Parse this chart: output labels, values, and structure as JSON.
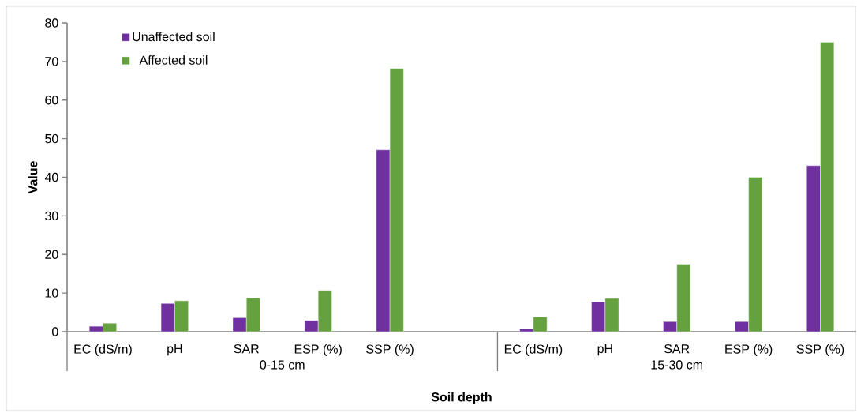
{
  "chart_data": {
    "type": "bar",
    "xlabel": "Soil depth",
    "ylabel": "Value",
    "categories": [
      "EC (dS/m)",
      "pH",
      "SAR",
      "ESP (%)",
      "SSP (%)",
      null,
      "EC (dS/m)",
      "pH",
      "SAR",
      "ESP (%)",
      "SSP (%)"
    ],
    "series": [
      {
        "name": "Unaffected soil",
        "color": "#7030a0",
        "values": [
          1.4,
          7.3,
          3.6,
          2.9,
          47.1,
          null,
          0.7,
          7.7,
          2.6,
          2.6,
          43.0
        ]
      },
      {
        "name": "Affected soil",
        "color": "#66a140",
        "values": [
          2.2,
          8.0,
          8.7,
          10.7,
          68.2,
          null,
          3.8,
          8.6,
          17.5,
          40.0,
          75.0
        ]
      }
    ],
    "annotations": [
      "0-15 cm",
      "15-30 cm"
    ],
    "ylim": [
      0,
      80
    ],
    "yticks": [
      0,
      10,
      20,
      30,
      40,
      50,
      60,
      70,
      80
    ],
    "legend": "top left",
    "grid": false
  }
}
